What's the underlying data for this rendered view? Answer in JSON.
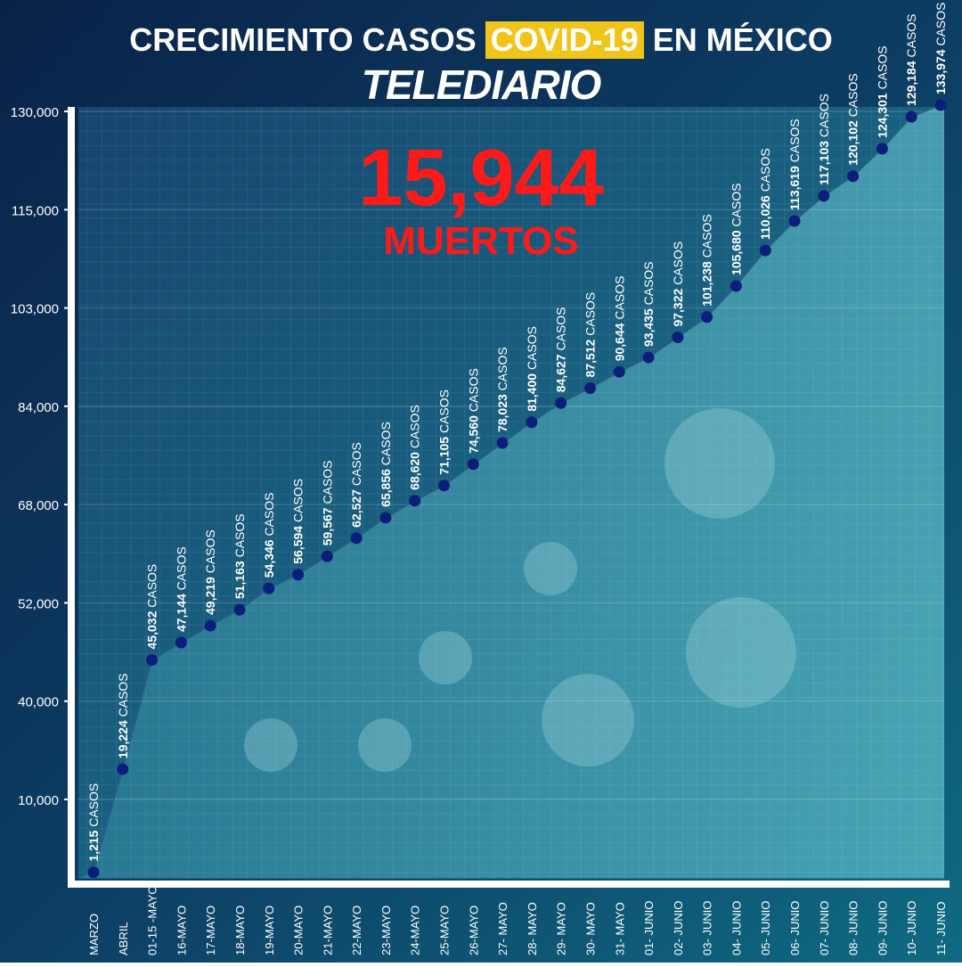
{
  "chart_data": {
    "type": "line",
    "title": "CRECIMIENTO CASOS",
    "title_highlight": "COVID-19",
    "title_end": "EN MÉXICO",
    "brand": "TELEDIARIO",
    "deaths": {
      "value": 15944,
      "label": "15,944"
    },
    "deaths_label": "MUERTOS",
    "unit_label": "CASOS",
    "categories": [
      "MARZO",
      "ABRIL",
      "01-15 -MAYO",
      "16-MAYO",
      "17-MAYO",
      "18-MAYO",
      "19-MAYO",
      "20-MAYO",
      "21-MAYO",
      "22-MAYO",
      "23-MAYO",
      "24-MAYO",
      "25-MAYO",
      "26-MAYO",
      "27- MAYO",
      "28- MAYO",
      "29- MAYO",
      "30- MAYO",
      "31- MAYO",
      "01- JUNIO",
      "02- JUNIO",
      "03- JUNIO",
      "04- JUNIO",
      "05- JUNIO",
      "06- JUNIO",
      "07- JUNIO",
      "08- JUNIO",
      "09- JUNIO",
      "10- JUNIO",
      "11- JUNIO"
    ],
    "values": [
      1215,
      19224,
      45032,
      47144,
      49219,
      51163,
      54346,
      56594,
      59567,
      62527,
      65856,
      68620,
      71105,
      74560,
      78023,
      81400,
      84627,
      87512,
      90644,
      93435,
      97322,
      101238,
      105680,
      110026,
      113619,
      117103,
      120102,
      124301,
      129184,
      133974
    ],
    "value_labels": [
      "1,215",
      "19,224",
      "45,032",
      "47,144",
      "49,219",
      "51,163",
      "54,346",
      "56,594",
      "59,567",
      "62,527",
      "65,856",
      "68,620",
      "71,105",
      "74,560",
      "78,023",
      "81,400",
      "84,627",
      "87,512",
      "90,644",
      "93,435",
      "97,322",
      "101,238",
      "105,680",
      "110,026",
      "113,619",
      "117,103",
      "120,102",
      "124,301",
      "129,184",
      "133,974"
    ],
    "color": "#0b1f7a",
    "ylim": [
      0,
      134000
    ],
    "yticks": [
      {
        "value": 10000,
        "label": "10,000"
      },
      {
        "value": 40000,
        "label": "40,000"
      },
      {
        "value": 52000,
        "label": "52,000"
      },
      {
        "value": 68000,
        "label": "68,000"
      },
      {
        "value": 84000,
        "label": "84,000"
      },
      {
        "value": 103000,
        "label": "103,000"
      },
      {
        "value": 115000,
        "label": "115,000"
      },
      {
        "value": 130000,
        "label": "130,000"
      }
    ],
    "grid": true
  }
}
